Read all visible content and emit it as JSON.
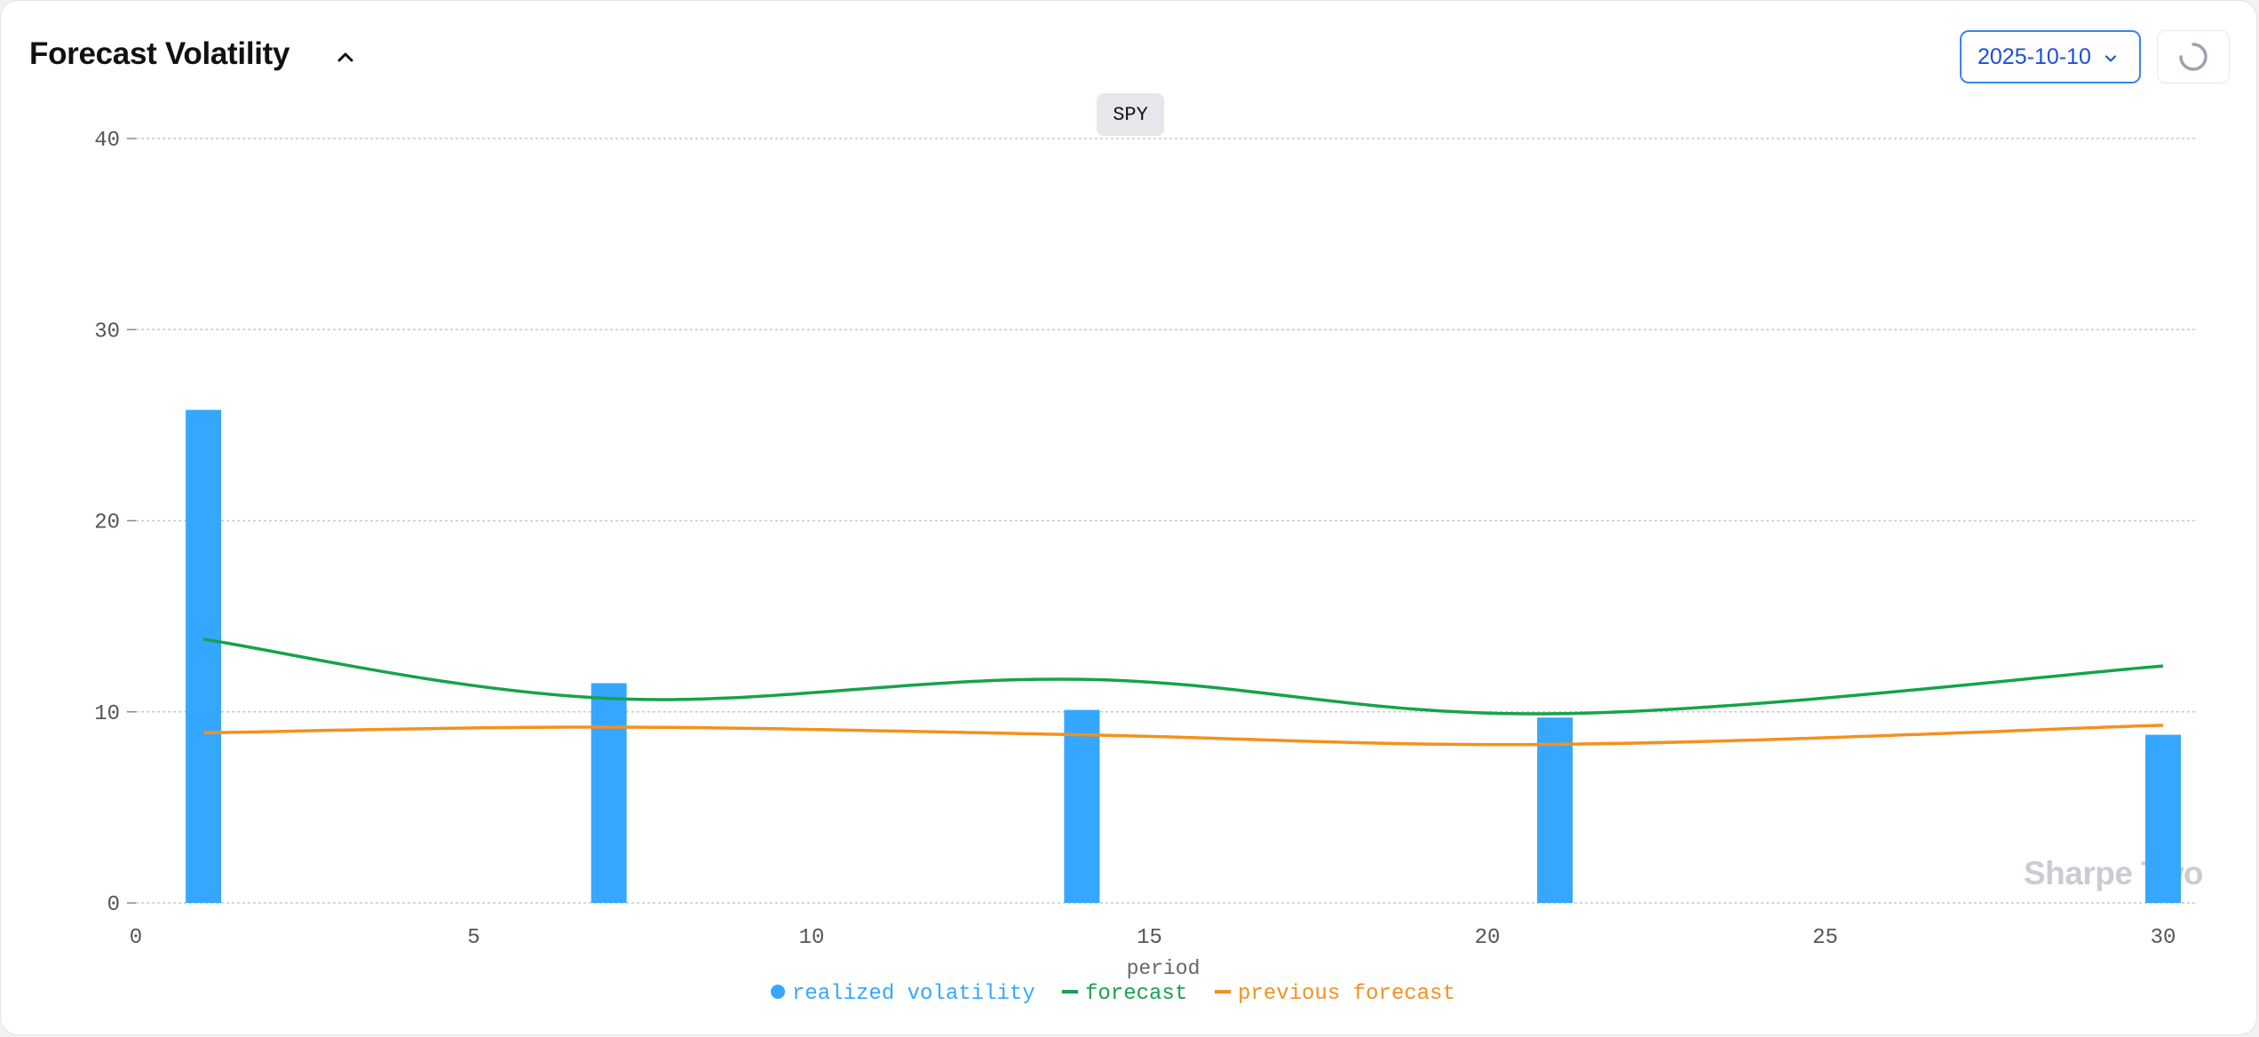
{
  "header": {
    "title": "Forecast Volatility",
    "date_value": "2025-10-10"
  },
  "ticker": "SPY",
  "watermark": "Sharpe Two",
  "icons": {
    "collapse": "chevron-up-icon",
    "date_dropdown": "chevron-down-icon",
    "refresh": "loading-spinner-icon"
  },
  "colors": {
    "realized": "#35a7ff",
    "forecast": "#16a34a",
    "previous": "#f5901e",
    "date_border": "#3b82f6"
  },
  "chart_data": {
    "type": "bar",
    "xlabel": "period",
    "ylabel": "",
    "xlim": [
      0,
      30
    ],
    "ylim": [
      0,
      40
    ],
    "x_ticks": [
      0,
      5,
      10,
      15,
      20,
      25,
      30
    ],
    "y_ticks": [
      0,
      10,
      20,
      30,
      40
    ],
    "grid": true,
    "legend_position": "bottom",
    "series": [
      {
        "name": "realized volatility",
        "type": "bar",
        "x": [
          1,
          7,
          14,
          21,
          30
        ],
        "values": [
          25.8,
          11.5,
          10.1,
          9.7,
          8.8
        ]
      },
      {
        "name": "forecast",
        "type": "line",
        "x": [
          1,
          7,
          14,
          21,
          30
        ],
        "values": [
          13.8,
          10.7,
          11.7,
          9.9,
          12.4
        ]
      },
      {
        "name": "previous forecast",
        "type": "line",
        "x": [
          1,
          7,
          14,
          21,
          30
        ],
        "values": [
          8.9,
          9.2,
          8.8,
          8.3,
          9.3
        ]
      }
    ]
  }
}
